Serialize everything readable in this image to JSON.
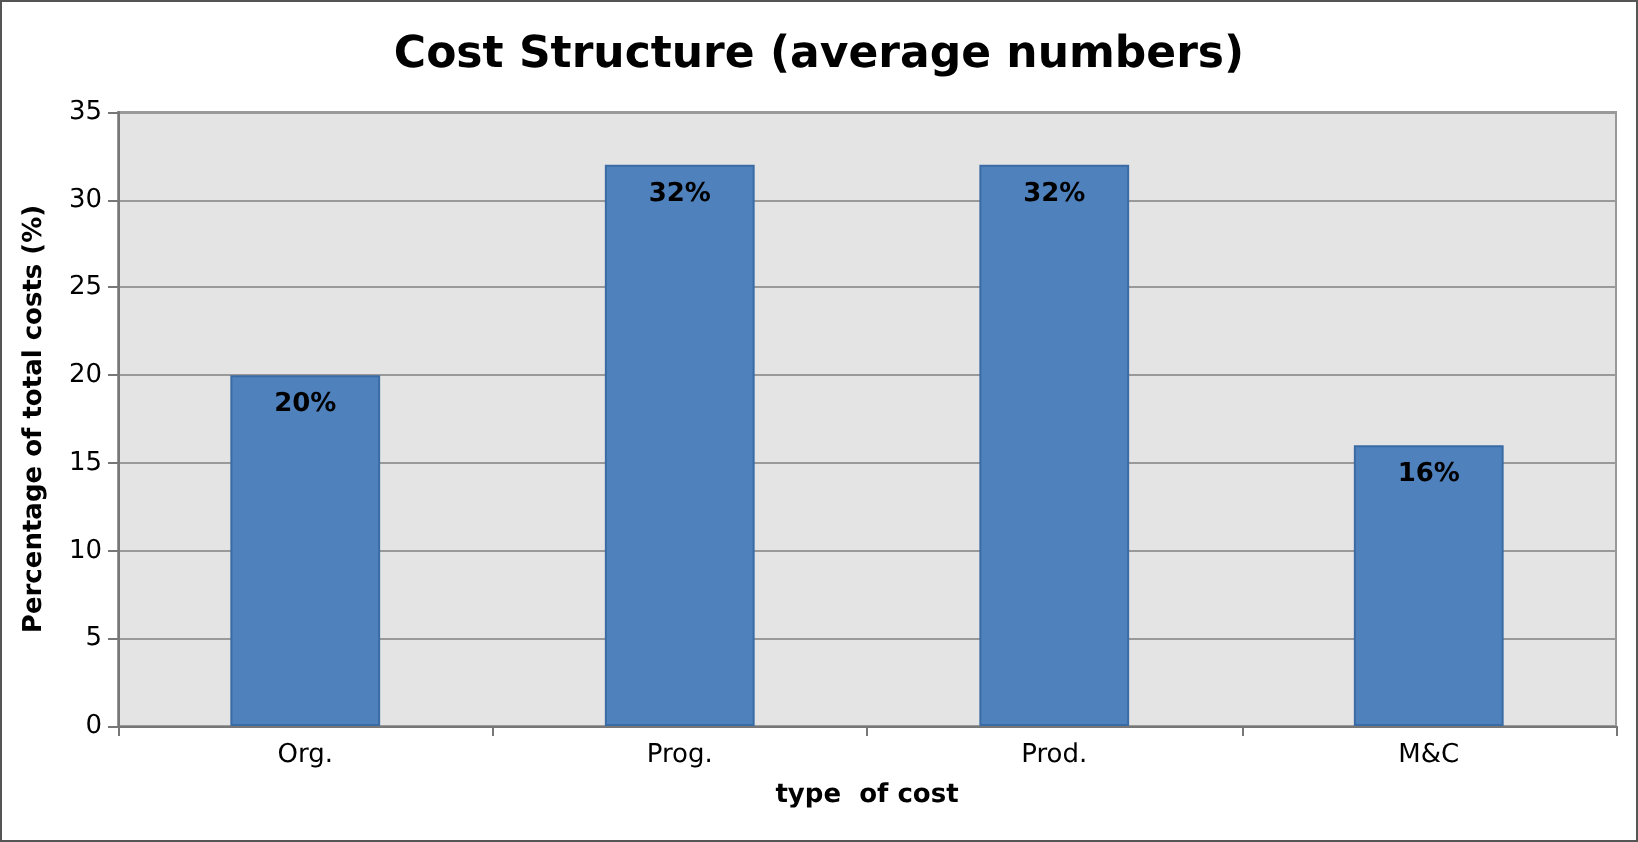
{
  "chart_data": {
    "type": "bar",
    "title": "Cost Structure (average numbers)",
    "xlabel": "type  of cost",
    "ylabel": "Percentage of total costs (%)",
    "categories": [
      "Org.",
      "Prog.",
      "Prod.",
      "M&C"
    ],
    "values": [
      20,
      32,
      32,
      16
    ],
    "value_labels": [
      "20%",
      "32%",
      "32%",
      "16%"
    ],
    "color": "#4f81bd",
    "ylim": [
      0,
      35
    ],
    "yticks": [
      0,
      5,
      10,
      15,
      20,
      25,
      30,
      35
    ],
    "grid": "y"
  }
}
